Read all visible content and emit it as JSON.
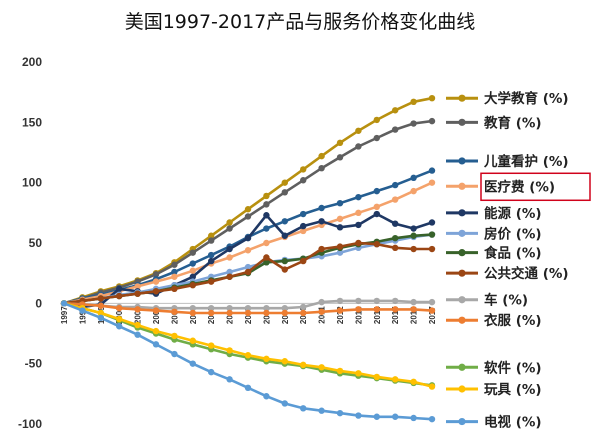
{
  "chart_data": {
    "type": "line",
    "title": "美国1997-2017产品与服务价格变化曲线",
    "xlabel": "",
    "ylabel": "",
    "x": [
      1997,
      1998,
      1999,
      2000,
      2001,
      2002,
      2003,
      2004,
      2005,
      2006,
      2007,
      2008,
      2009,
      2010,
      2011,
      2012,
      2013,
      2014,
      2015,
      2016,
      2017
    ],
    "ylim": [
      -100,
      200
    ],
    "yticks": [
      -100,
      -50,
      0,
      50,
      100,
      150,
      200
    ],
    "grid": false,
    "legend_position": "right",
    "highlighted_series": "医疗费 (%)",
    "highlight_color": "#d0021b",
    "series": [
      {
        "name": "大学教育 (%)",
        "color": "#b8900f",
        "values": [
          0,
          5,
          10,
          14,
          19,
          25,
          34,
          45,
          56,
          67,
          78,
          89,
          100,
          111,
          122,
          133,
          143,
          152,
          160,
          167,
          170
        ]
      },
      {
        "name": "教育 (%)",
        "color": "#5f5f5f",
        "values": [
          0,
          4,
          9,
          13,
          18,
          24,
          32,
          42,
          52,
          62,
          72,
          82,
          92,
          102,
          112,
          121,
          130,
          137,
          144,
          149,
          151
        ]
      },
      {
        "name": "儿童看护 (%)",
        "color": "#255e91",
        "values": [
          0,
          4,
          7,
          11,
          15,
          20,
          26,
          33,
          40,
          47,
          55,
          62,
          68,
          74,
          79,
          83,
          88,
          93,
          98,
          104,
          110
        ]
      },
      {
        "name": "医疗费 (%)",
        "color": "#f4a26b",
        "values": [
          0,
          3,
          6,
          10,
          14,
          18,
          22,
          27,
          33,
          38,
          44,
          50,
          55,
          60,
          65,
          70,
          75,
          80,
          86,
          93,
          100
        ]
      },
      {
        "name": "能源 (%)",
        "color": "#1f3864",
        "values": [
          0,
          -3,
          -1,
          12,
          10,
          8,
          15,
          22,
          35,
          45,
          54,
          73,
          56,
          64,
          68,
          63,
          65,
          74,
          66,
          62,
          67
        ]
      },
      {
        "name": "房价 (%)",
        "color": "#7ea4d8",
        "values": [
          0,
          2,
          4,
          7,
          9,
          12,
          15,
          18,
          22,
          26,
          30,
          34,
          36,
          37,
          39,
          42,
          46,
          49,
          52,
          55,
          57
        ]
      },
      {
        "name": "食品 (%)",
        "color": "#38622a",
        "values": [
          0,
          2,
          4,
          6,
          8,
          10,
          13,
          16,
          19,
          22,
          25,
          34,
          35,
          37,
          42,
          46,
          49,
          51,
          54,
          56,
          57
        ]
      },
      {
        "name": "公共交通 (%)",
        "color": "#9b4614",
        "values": [
          0,
          2,
          4,
          6,
          8,
          10,
          12,
          15,
          18,
          22,
          26,
          38,
          28,
          35,
          45,
          47,
          50,
          49,
          46,
          45,
          45
        ]
      },
      {
        "name": "车 (%)",
        "color": "#a8a8a8",
        "values": [
          0,
          -1,
          -2,
          -3,
          -3,
          -4,
          -4,
          -4,
          -4,
          -4,
          -4,
          -4,
          -4,
          -3,
          1,
          2,
          2,
          2,
          2,
          1,
          1
        ]
      },
      {
        "name": "衣服 (%)",
        "color": "#ed7d31",
        "values": [
          0,
          -1,
          -2,
          -4,
          -5,
          -6,
          -7,
          -8,
          -8,
          -8,
          -8,
          -8,
          -8,
          -8,
          -7,
          -6,
          -5,
          -5,
          -5,
          -5,
          -6
        ]
      },
      {
        "name": "软件 (%)",
        "color": "#70ad47",
        "values": [
          0,
          -4,
          -8,
          -14,
          -20,
          -25,
          -30,
          -34,
          -38,
          -42,
          -45,
          -48,
          -50,
          -52,
          -55,
          -58,
          -60,
          -62,
          -64,
          -66,
          -68
        ]
      },
      {
        "name": "玩具 (%)",
        "color": "#ffc000",
        "values": [
          0,
          -4,
          -8,
          -13,
          -18,
          -23,
          -27,
          -31,
          -35,
          -39,
          -43,
          -46,
          -48,
          -51,
          -53,
          -56,
          -58,
          -61,
          -63,
          -65,
          -69
        ]
      },
      {
        "name": "电视 (%)",
        "color": "#5b9bd5",
        "values": [
          0,
          -6,
          -12,
          -19,
          -26,
          -34,
          -42,
          -50,
          -57,
          -63,
          -70,
          -77,
          -83,
          -87,
          -89,
          -91,
          -93,
          -94,
          -94,
          -95,
          -96
        ]
      }
    ],
    "legend_label_y": [
      {
        "name": "大学教育 (%)",
        "y": 170
      },
      {
        "name": "教育 (%)",
        "y": 150
      },
      {
        "name": "儿童看护 (%)",
        "y": 118
      },
      {
        "name": "医疗费 (%)",
        "y": 97
      },
      {
        "name": "能源 (%)",
        "y": 75
      },
      {
        "name": "房价 (%)",
        "y": 58
      },
      {
        "name": "食品 (%)",
        "y": 42
      },
      {
        "name": "公共交通 (%)",
        "y": 25
      },
      {
        "name": "车 (%)",
        "y": 3
      },
      {
        "name": "衣服 (%)",
        "y": -14
      },
      {
        "name": "软件 (%)",
        "y": -53
      },
      {
        "name": "玩具 (%)",
        "y": -71
      },
      {
        "name": "电视 (%)",
        "y": -98
      }
    ]
  }
}
